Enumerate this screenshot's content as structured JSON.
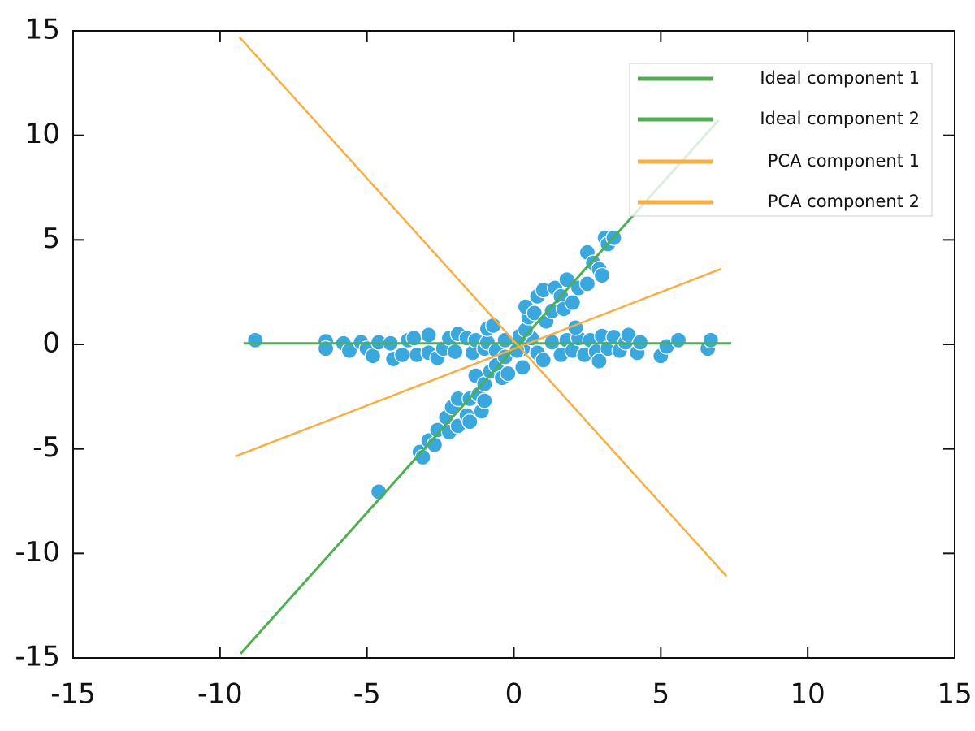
{
  "chart_data": {
    "type": "scatter",
    "xlim": [
      -15,
      15
    ],
    "ylim": [
      -15,
      15
    ],
    "xticks": [
      -15,
      -10,
      -5,
      0,
      5,
      10,
      15
    ],
    "yticks": [
      -15,
      -10,
      -5,
      0,
      5,
      10,
      15
    ],
    "legend": "upper right",
    "points": {
      "color": "#3aa8de",
      "x": [
        -8.8,
        -6.4,
        -6.4,
        -5.8,
        -5.6,
        -5.2,
        -5.0,
        -4.8,
        -4.6,
        -4.2,
        -4.1,
        -3.8,
        -3.6,
        -3.4,
        -3.3,
        -2.9,
        -2.9,
        -2.6,
        -2.4,
        -2.2,
        -2.0,
        -1.9,
        -1.6,
        -1.4,
        -1.3,
        -1.0,
        -0.9,
        -0.6,
        -0.3,
        0.3,
        0.6,
        0.8,
        1.0,
        1.3,
        1.6,
        1.8,
        2.0,
        2.2,
        2.4,
        2.6,
        2.8,
        2.9,
        3.0,
        3.2,
        3.4,
        3.6,
        3.8,
        3.9,
        4.2,
        4.3,
        5.0,
        5.2,
        5.6,
        6.6,
        6.7,
        -4.6,
        -3.2,
        -3.1,
        -2.9,
        -2.7,
        -2.6,
        -2.3,
        -2.2,
        -2.1,
        -1.9,
        -1.9,
        -1.6,
        -1.5,
        -1.5,
        -1.2,
        -1.1,
        -1.3,
        -1.0,
        -1.0,
        -0.8,
        -0.6,
        -0.4,
        -0.2,
        -0.3,
        0.1,
        0.2,
        0.4,
        0.3,
        0.5,
        0.4,
        0.7,
        0.8,
        1.0,
        1.1,
        1.3,
        1.4,
        1.6,
        1.8,
        1.7,
        2.0,
        2.1,
        2.2,
        2.5,
        2.5,
        2.7,
        2.9,
        3.0,
        3.1,
        3.2,
        3.4,
        -0.9,
        -0.7
      ],
      "y": [
        0.2,
        0.15,
        -0.2,
        0.05,
        -0.3,
        0.1,
        -0.2,
        -0.55,
        0.1,
        0.05,
        -0.7,
        -0.5,
        0.2,
        0.3,
        -0.5,
        -0.4,
        0.45,
        -0.65,
        -0.2,
        0.3,
        -0.35,
        0.5,
        0.3,
        -0.4,
        0.2,
        -0.2,
        0.1,
        -0.3,
        0.2,
        -0.2,
        0.3,
        -0.4,
        -0.75,
        0.1,
        -0.5,
        0.2,
        -0.3,
        0.3,
        -0.5,
        0.2,
        -0.35,
        -0.8,
        0.4,
        -0.2,
        0.35,
        -0.3,
        0.1,
        0.45,
        -0.4,
        0.1,
        -0.55,
        -0.1,
        0.2,
        -0.2,
        0.2,
        -7.05,
        -5.15,
        -5.4,
        -4.6,
        -4.8,
        -4.1,
        -3.5,
        -4.2,
        -3.0,
        -2.6,
        -3.9,
        -3.4,
        -2.6,
        -3.7,
        -2.4,
        -3.2,
        -1.5,
        -1.9,
        -2.7,
        -1.3,
        -1.0,
        -1.6,
        -1.4,
        -0.6,
        -0.3,
        0.4,
        0.7,
        -1.1,
        1.3,
        1.8,
        1.5,
        2.3,
        2.6,
        1.1,
        1.6,
        2.7,
        2.3,
        3.1,
        1.7,
        2.0,
        0.8,
        2.7,
        2.9,
        4.4,
        3.9,
        3.6,
        3.3,
        5.1,
        4.8,
        5.1,
        0.75,
        0.9
      ]
    },
    "series": [
      {
        "name": "Ideal component 1",
        "color": "#4caf50",
        "x": [
          -9.2,
          7.4
        ],
        "values": [
          0.05,
          0.05
        ]
      },
      {
        "name": "Ideal component 2",
        "color": "#4caf50",
        "x": [
          -9.3,
          6.97
        ],
        "values": [
          -14.8,
          10.73
        ]
      },
      {
        "name": "PCA component 1",
        "color": "#f7ae42",
        "x": [
          -9.34,
          7.24
        ],
        "values": [
          14.7,
          -11.1
        ]
      },
      {
        "name": "PCA component 2",
        "color": "#f7ae42",
        "x": [
          -9.48,
          7.05
        ],
        "values": [
          -5.36,
          3.61
        ]
      }
    ]
  }
}
